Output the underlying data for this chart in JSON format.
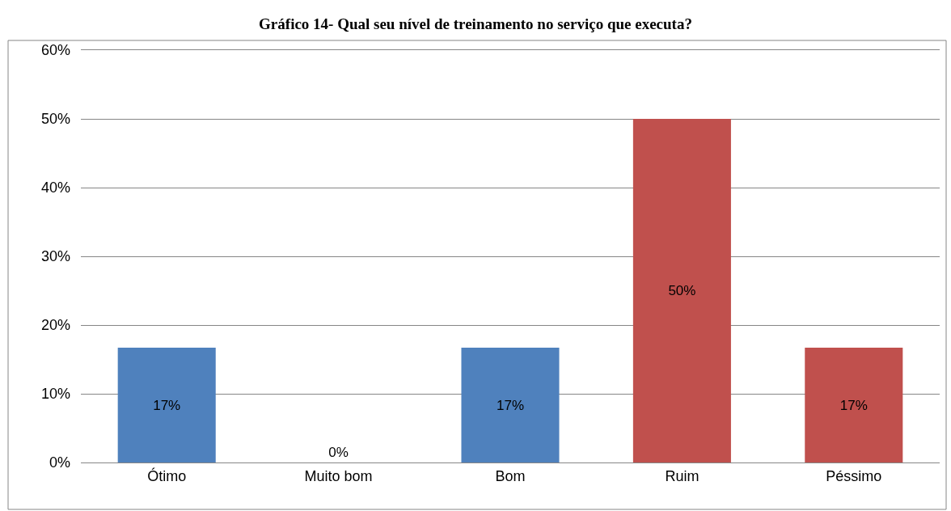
{
  "chart_data": {
    "type": "bar",
    "title": "Gráfico 14- Qual seu nível de treinamento no serviço que executa?",
    "categories": [
      "Ótimo",
      "Muito bom",
      "Bom",
      "Ruim",
      "Péssimo"
    ],
    "values": [
      16.7,
      0,
      16.7,
      50,
      16.7
    ],
    "colors": [
      "#4f81bd",
      "#4f81bd",
      "#4f81bd",
      "#c0504d",
      "#c0504d"
    ],
    "value_labels": [
      "17%",
      "0%",
      "17%",
      "50%",
      "17%"
    ],
    "ylim": [
      0,
      60
    ],
    "yticks": [
      {
        "value": 0,
        "label": "0%"
      },
      {
        "value": 10,
        "label": "10%"
      },
      {
        "value": 20,
        "label": "20%"
      },
      {
        "value": 30,
        "label": "30%"
      },
      {
        "value": 40,
        "label": "40%"
      },
      {
        "value": 50,
        "label": "50%"
      },
      {
        "value": 60,
        "label": "60%"
      }
    ],
    "grid": "y"
  }
}
